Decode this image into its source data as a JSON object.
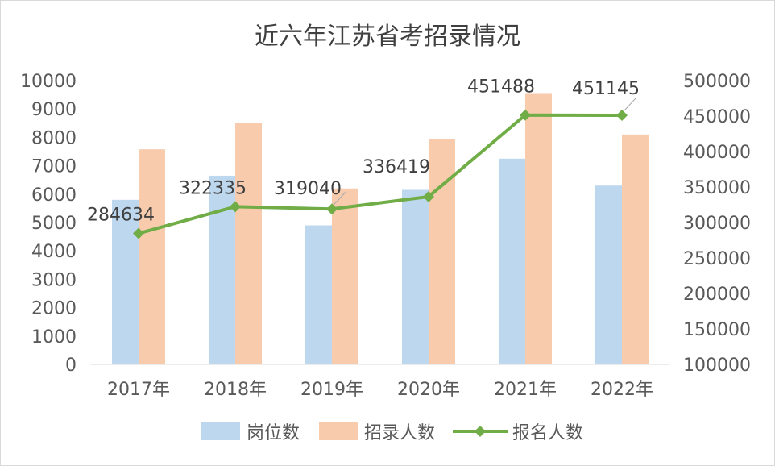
{
  "chart_data": {
    "type": "bar",
    "title": "近六年江苏省考招录情况",
    "categories": [
      "2017年",
      "2018年",
      "2019年",
      "2020年",
      "2021年",
      "2022年"
    ],
    "series": [
      {
        "name": "岗位数",
        "type": "bar",
        "axis": "left",
        "color": "#bdd7ee",
        "values": [
          5800,
          6650,
          4900,
          6150,
          7250,
          6300
        ]
      },
      {
        "name": "招录人数",
        "type": "bar",
        "axis": "left",
        "color": "#f8cbad",
        "values": [
          7580,
          8500,
          6200,
          7950,
          9560,
          8100
        ]
      },
      {
        "name": "报名人数",
        "type": "line",
        "axis": "right",
        "color": "#70ad47",
        "values": [
          284634,
          322335,
          319040,
          336419,
          451488,
          451145
        ],
        "data_labels": [
          "284634",
          "322335",
          "319040",
          "336419",
          "451488",
          "451145"
        ]
      }
    ],
    "y_left": {
      "min": 0,
      "max": 10000,
      "step": 1000,
      "ticks": [
        "0",
        "1000",
        "2000",
        "3000",
        "4000",
        "5000",
        "6000",
        "7000",
        "8000",
        "9000",
        "10000"
      ]
    },
    "y_right": {
      "min": 100000,
      "max": 500000,
      "step": 50000,
      "ticks": [
        "100000",
        "150000",
        "200000",
        "250000",
        "300000",
        "350000",
        "400000",
        "450000",
        "500000"
      ]
    },
    "grid": false,
    "legend_position": "bottom"
  }
}
